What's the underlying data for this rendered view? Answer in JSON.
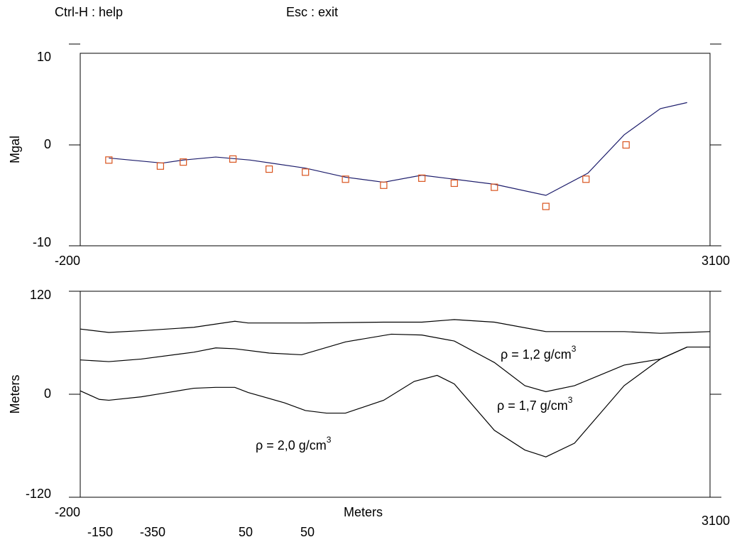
{
  "header": {
    "help": "Ctrl-H : help",
    "exit": "Esc : exit"
  },
  "footer_labels": [
    "-150",
    "-350",
    "50",
    "50"
  ],
  "chart_data": [
    {
      "type": "line",
      "y_label": "Mgal",
      "xlim": [
        -200,
        3100
      ],
      "xticks": [
        -200,
        3100
      ],
      "ylim": [
        -10,
        10
      ],
      "yticks": [
        10,
        0,
        -10
      ],
      "series": [
        {
          "style": "line",
          "color": "#1c1c6b",
          "x": [
            -50,
            230,
            340,
            510,
            690,
            980,
            1190,
            1390,
            1590,
            1760,
            1970,
            2240,
            2460,
            2650,
            2840,
            2980
          ],
          "values": [
            -1.3,
            -1.8,
            -1.5,
            -1.2,
            -1.5,
            -2.3,
            -3.2,
            -3.7,
            -3.0,
            -3.4,
            -3.9,
            -5.0,
            -2.8,
            1.0,
            3.6,
            4.2
          ]
        },
        {
          "style": "square",
          "color": "#d9541e",
          "x": [
            -50,
            220,
            340,
            600,
            790,
            980,
            1190,
            1390,
            1590,
            1760,
            1970,
            2240,
            2450,
            2660
          ],
          "values": [
            -1.5,
            -2.1,
            -1.7,
            -1.4,
            -2.4,
            -2.7,
            -3.4,
            -4.0,
            -3.3,
            -3.8,
            -4.2,
            -6.1,
            -3.4,
            0.0
          ]
        }
      ]
    },
    {
      "type": "line",
      "x_label": "Meters",
      "y_label": "Meters",
      "xlim": [
        -200,
        3100
      ],
      "xticks": [
        -200,
        3100
      ],
      "ylim": [
        -120,
        120
      ],
      "yticks": [
        120,
        0,
        -120
      ],
      "series": [
        {
          "style": "line",
          "color": "#000000",
          "x": [
            -200,
            -50,
            120,
            395,
            610,
            680,
            980,
            1390,
            1590,
            1760,
            1970,
            2240,
            2650,
            2840,
            2980,
            3100
          ],
          "values": [
            76,
            72,
            74,
            78,
            85,
            83,
            83,
            84,
            84,
            87,
            84,
            73,
            73,
            71,
            72,
            73
          ]
        },
        {
          "style": "line",
          "color": "#000000",
          "x": [
            -200,
            -50,
            120,
            395,
            510,
            610,
            790,
            960,
            1190,
            1430,
            1590,
            1760,
            1970,
            2130,
            2240,
            2390,
            2650,
            2840,
            2980,
            3100
          ],
          "values": [
            40,
            38,
            41,
            49,
            54,
            53,
            48,
            46,
            61,
            70,
            69,
            62,
            37,
            10,
            3,
            10,
            34,
            41,
            55,
            55
          ]
        },
        {
          "style": "line",
          "color": "#000000",
          "x": [
            -200,
            -100,
            -50,
            120,
            230,
            395,
            510,
            610,
            680,
            870,
            980,
            1090,
            1190,
            1390,
            1550,
            1670,
            1760,
            1970,
            2130,
            2240,
            2390,
            2650,
            2840,
            2980
          ],
          "values": [
            4,
            -6,
            -7,
            -3,
            1,
            7,
            8,
            8,
            2,
            -10,
            -19,
            -22,
            -22,
            -7,
            15,
            22,
            12,
            -42,
            -65,
            -73,
            -57,
            10,
            41,
            55
          ]
        }
      ],
      "annotations": [
        {
          "text": "ρ = 1,2 g/cm",
          "sup": "3"
        },
        {
          "text": "ρ = 1,7 g/cm",
          "sup": "3"
        },
        {
          "text": "ρ = 2,0 g/cm",
          "sup": "3"
        }
      ]
    }
  ]
}
